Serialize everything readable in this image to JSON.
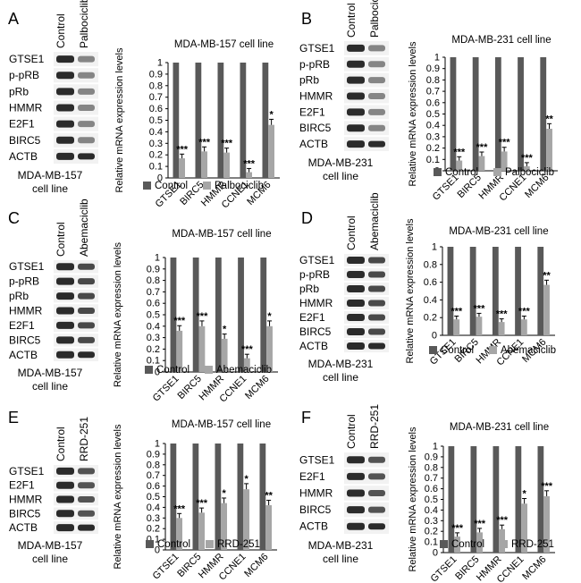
{
  "figure": {
    "ylabel": "Relative mRNA expression levels",
    "colors": {
      "control": "#595959",
      "treated": "#a6a6a6",
      "blot_bg": "#f2f2f2",
      "band": "#2b2b2b"
    }
  },
  "chart_data": [
    {
      "panel": "A",
      "type": "bar",
      "title": "MDA-MB-157 cell line",
      "ylabel": "Relative mRNA expression levels",
      "categories": [
        "GTSE1",
        "BIRC5",
        "HMMR",
        "CCNE1",
        "MCM6"
      ],
      "ylim": [
        0,
        1
      ],
      "yticks": [
        "0",
        "0.1",
        "0.2",
        "0.3",
        "0.4",
        "0.5",
        "0.6",
        "0.7",
        "0.8",
        "0.9",
        "1"
      ],
      "series": [
        {
          "name": "Control",
          "values": [
            1,
            1,
            1,
            1,
            1
          ]
        },
        {
          "name": "Palbociclib",
          "values": [
            0.17,
            0.23,
            0.22,
            0.05,
            0.46
          ]
        }
      ],
      "significance": [
        "***",
        "***",
        "***",
        "***",
        "*"
      ],
      "blot": {
        "lanes": [
          "Control",
          "Palbociclib"
        ],
        "genes": [
          "GTSE1",
          "p-pRB",
          "pRb",
          "HMMR",
          "E2F1",
          "BIRC5",
          "ACTB"
        ],
        "cell_line": [
          "MDA-MB-157",
          "cell line"
        ]
      }
    },
    {
      "panel": "B",
      "type": "bar",
      "title": "MDA-MB-231 cell line",
      "ylabel": "Relative mRNA expression levels",
      "categories": [
        "GTSE1",
        "BIRC5",
        "HMMR",
        "CCNE1",
        "MCM6"
      ],
      "ylim": [
        0,
        1
      ],
      "yticks": [
        "0",
        "0.1",
        "0.2",
        "0.3",
        "0.4",
        "0.5",
        "0.6",
        "0.7",
        "0.8",
        "0.9",
        "1"
      ],
      "series": [
        {
          "name": "Control",
          "values": [
            1,
            1,
            1,
            1,
            1
          ]
        },
        {
          "name": "Palbociclib",
          "values": [
            0.09,
            0.13,
            0.17,
            0.04,
            0.37
          ]
        }
      ],
      "significance": [
        "***",
        "***",
        "***",
        "***",
        "**"
      ],
      "blot": {
        "lanes": [
          "Control",
          "Palbociclib"
        ],
        "genes": [
          "GTSE1",
          "p-pRB",
          "pRb",
          "HMMR",
          "E2F1",
          "BIRC5",
          "ACTB"
        ],
        "cell_line": [
          "MDA-MB-231",
          "cell line"
        ]
      }
    },
    {
      "panel": "C",
      "type": "bar",
      "title": "MDA-MB-157 cell line",
      "ylabel": "Relative mRNA expression levels",
      "categories": [
        "GTSE1",
        "BIRC5",
        "HMMR",
        "CCNE1",
        "MCM6"
      ],
      "ylim": [
        0,
        1
      ],
      "yticks": [
        "0",
        "0.1",
        "0.2",
        "0.3",
        "0.4",
        "0.5",
        "0.6",
        "0.7",
        "0.8",
        "0.9",
        "1"
      ],
      "series": [
        {
          "name": "Control",
          "values": [
            1,
            1,
            1,
            1,
            1
          ]
        },
        {
          "name": "Abemaciclib",
          "values": [
            0.36,
            0.4,
            0.29,
            0.12,
            0.4
          ]
        }
      ],
      "significance": [
        "***",
        "***",
        "*",
        "***",
        "*"
      ],
      "blot": {
        "lanes": [
          "Control",
          "Abemaciclib"
        ],
        "genes": [
          "GTSE1",
          "p-pRB",
          "pRb",
          "HMMR",
          "E2F1",
          "BIRC5",
          "ACTB"
        ],
        "cell_line": [
          "MDA-MB-157",
          "cell line"
        ]
      }
    },
    {
      "panel": "D",
      "type": "bar",
      "title": "MDA-MB-231 cell line",
      "ylabel": "Relative mRNA expression levels",
      "categories": [
        "GTSE1",
        "BIRC5",
        "HMMR",
        "CCNE1",
        "MCM6"
      ],
      "ylim": [
        0,
        1
      ],
      "yticks": [
        "0",
        "0.2",
        "0.4",
        "0.6",
        "0.8",
        "1"
      ],
      "series": [
        {
          "name": "Control",
          "values": [
            1,
            1,
            1,
            1,
            1
          ]
        },
        {
          "name": "Abemaciclib",
          "values": [
            0.18,
            0.21,
            0.15,
            0.18,
            0.57
          ]
        }
      ],
      "significance": [
        "***",
        "***",
        "***",
        "***",
        "**"
      ],
      "blot": {
        "lanes": [
          "Control",
          "Abemaciclib"
        ],
        "genes": [
          "GTSE1",
          "p-pRB",
          "pRb",
          "HMMR",
          "E2F1",
          "BIRC5",
          "ACTB"
        ],
        "cell_line": [
          "MDA-MB-231",
          "cell line"
        ]
      }
    },
    {
      "panel": "E",
      "type": "bar",
      "title": "MDA-MB-157 cell line",
      "ylabel": "Relative mRNA expression levels",
      "categories": [
        "GTSE1",
        "BIRC5",
        "HMMR",
        "CCNE1",
        "MCM6"
      ],
      "ylim": [
        0,
        1
      ],
      "yticks": [
        "0",
        "0.1",
        "0.2",
        "0.3",
        "0.4",
        "0.5",
        "0.6",
        "0.7",
        "0.8",
        "0.9",
        "1"
      ],
      "series": [
        {
          "name": "Control",
          "values": [
            1,
            1,
            1,
            1,
            1
          ]
        },
        {
          "name": "RRD-251",
          "values": [
            0.3,
            0.35,
            0.44,
            0.57,
            0.42
          ]
        }
      ],
      "significance": [
        "***",
        "***",
        "*",
        "*",
        "**"
      ],
      "blot": {
        "lanes": [
          "Control",
          "RRD-251"
        ],
        "genes": [
          "GTSE1",
          "E2F1",
          "HMMR",
          "BIRC5",
          "ACTB"
        ],
        "cell_line": [
          "MDA-MB-157",
          "cell line"
        ]
      }
    },
    {
      "panel": "F",
      "type": "bar",
      "title": "MDA-MB-231 cell line",
      "ylabel": "Relative mRNA expression levels",
      "categories": [
        "GTSE1",
        "BIRC5",
        "HMMR",
        "CCNE1",
        "MCM6"
      ],
      "ylim": [
        0,
        1
      ],
      "yticks": [
        "0",
        "0.1",
        "0.2",
        "0.3",
        "0.4",
        "0.5",
        "0.6",
        "0.7",
        "0.8",
        "0.9",
        "1"
      ],
      "series": [
        {
          "name": "Control",
          "values": [
            1,
            1,
            1,
            1,
            1
          ]
        },
        {
          "name": "RRD-251",
          "values": [
            0.15,
            0.19,
            0.22,
            0.46,
            0.53
          ]
        }
      ],
      "significance": [
        "***",
        "***",
        "***",
        "*",
        "***"
      ],
      "blot": {
        "lanes": [
          "Control",
          "RRD-251"
        ],
        "genes": [
          "GTSE1",
          "E2F1",
          "HMMR",
          "BIRC5",
          "ACTB"
        ],
        "cell_line": [
          "MDA-MB-231",
          "cell line"
        ]
      }
    }
  ]
}
